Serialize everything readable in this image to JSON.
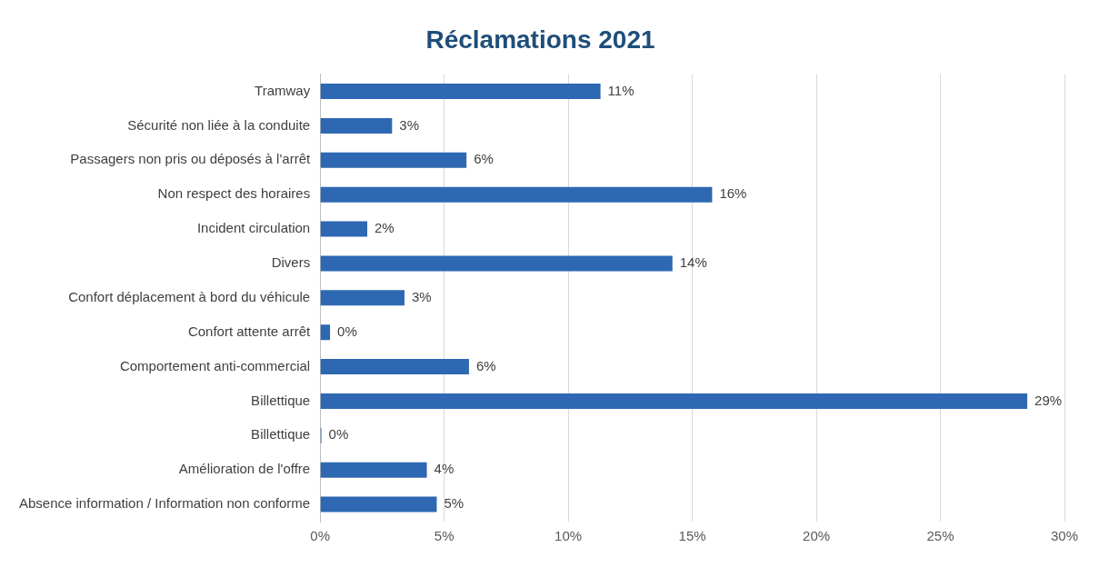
{
  "chart_data": {
    "type": "bar",
    "orientation": "horizontal",
    "title": "Réclamations 2021",
    "categories": [
      "Tramway",
      "Sécurité non liée à la conduite",
      "Passagers non pris ou déposés à l'arrêt",
      "Non respect des horaires",
      "Incident circulation",
      "Divers",
      "Confort déplacement à bord du véhicule",
      "Confort attente arrêt",
      "Comportement anti-commercial",
      "Billettique",
      "Billettique",
      "Amélioration de l'offre",
      "Absence information / Information non conforme"
    ],
    "values": [
      11.3,
      2.9,
      5.9,
      15.8,
      1.9,
      14.2,
      3.4,
      0.4,
      6.0,
      28.5,
      0.05,
      4.3,
      4.7
    ],
    "value_labels": [
      "11%",
      "3%",
      "6%",
      "16%",
      "2%",
      "14%",
      "3%",
      "0%",
      "6%",
      "29%",
      "0%",
      "4%",
      "5%"
    ],
    "color": "#2e68b2",
    "xlim": [
      0,
      30
    ],
    "xticks": [
      {
        "value": 0,
        "label": "0%"
      },
      {
        "value": 5,
        "label": "5%"
      },
      {
        "value": 10,
        "label": "10%"
      },
      {
        "value": 15,
        "label": "15%"
      },
      {
        "value": 20,
        "label": "20%"
      },
      {
        "value": 25,
        "label": "25%"
      },
      {
        "value": 30,
        "label": "30%"
      }
    ],
    "grid": "x",
    "legend": false
  }
}
